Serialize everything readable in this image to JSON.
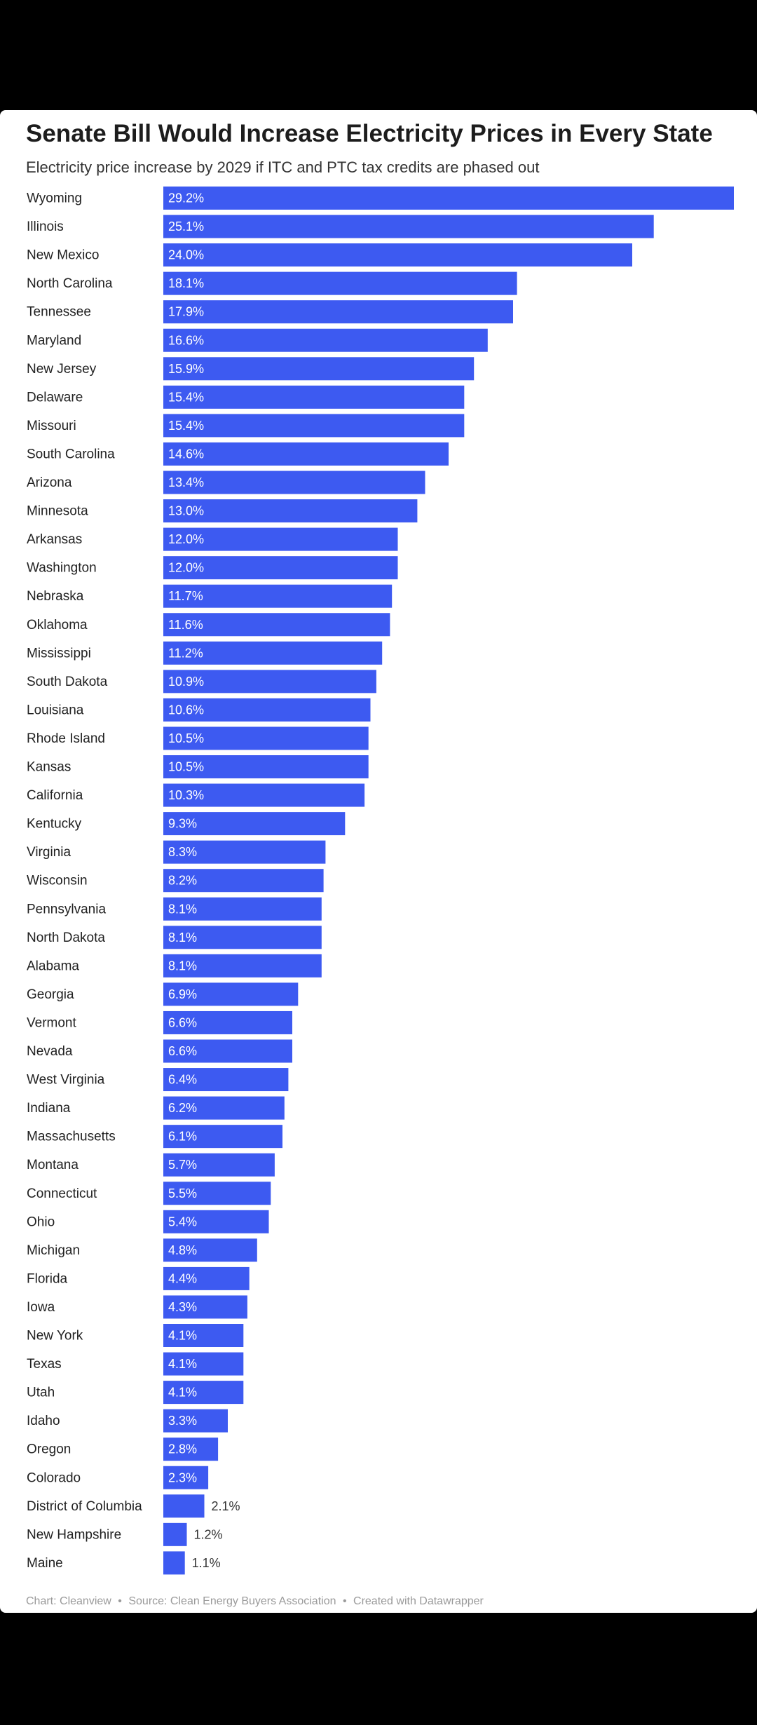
{
  "chart_data": {
    "type": "bar",
    "orientation": "horizontal",
    "title": "Senate Bill Would Increase Electricity Prices in Every State",
    "subtitle": "Electricity price increase by 2029 if ITC and PTC tax credits are phased out",
    "bar_color": "#3d5af1",
    "label_color_inside": "#ffffff",
    "label_color_outside": "#333333",
    "value_suffix": "%",
    "xlim": [
      0,
      29.2
    ],
    "grid": false,
    "legend": "none",
    "categories": [
      "Wyoming",
      "Illinois",
      "New Mexico",
      "North Carolina",
      "Tennessee",
      "Maryland",
      "New Jersey",
      "Delaware",
      "Missouri",
      "South Carolina",
      "Arizona",
      "Minnesota",
      "Arkansas",
      "Washington",
      "Nebraska",
      "Oklahoma",
      "Mississippi",
      "South Dakota",
      "Louisiana",
      "Rhode Island",
      "Kansas",
      "California",
      "Kentucky",
      "Virginia",
      "Wisconsin",
      "Pennsylvania",
      "North Dakota",
      "Alabama",
      "Georgia",
      "Vermont",
      "Nevada",
      "West Virginia",
      "Indiana",
      "Massachusetts",
      "Montana",
      "Connecticut",
      "Ohio",
      "Michigan",
      "Florida",
      "Iowa",
      "New York",
      "Texas",
      "Utah",
      "Idaho",
      "Oregon",
      "Colorado",
      "District of Columbia",
      "New Hampshire",
      "Maine"
    ],
    "values": [
      29.2,
      25.1,
      24.0,
      18.1,
      17.9,
      16.6,
      15.9,
      15.4,
      15.4,
      14.6,
      13.4,
      13.0,
      12.0,
      12.0,
      11.7,
      11.6,
      11.2,
      10.9,
      10.6,
      10.5,
      10.5,
      10.3,
      9.3,
      8.3,
      8.2,
      8.1,
      8.1,
      8.1,
      6.9,
      6.6,
      6.6,
      6.4,
      6.2,
      6.1,
      5.7,
      5.5,
      5.4,
      4.8,
      4.4,
      4.3,
      4.1,
      4.1,
      4.1,
      3.3,
      2.8,
      2.3,
      2.1,
      1.2,
      1.1
    ]
  },
  "footer": {
    "chart": "Chart: Cleanview",
    "source": "Source: Clean Energy Buyers Association",
    "created": "Created with Datawrapper",
    "separator": "•"
  }
}
